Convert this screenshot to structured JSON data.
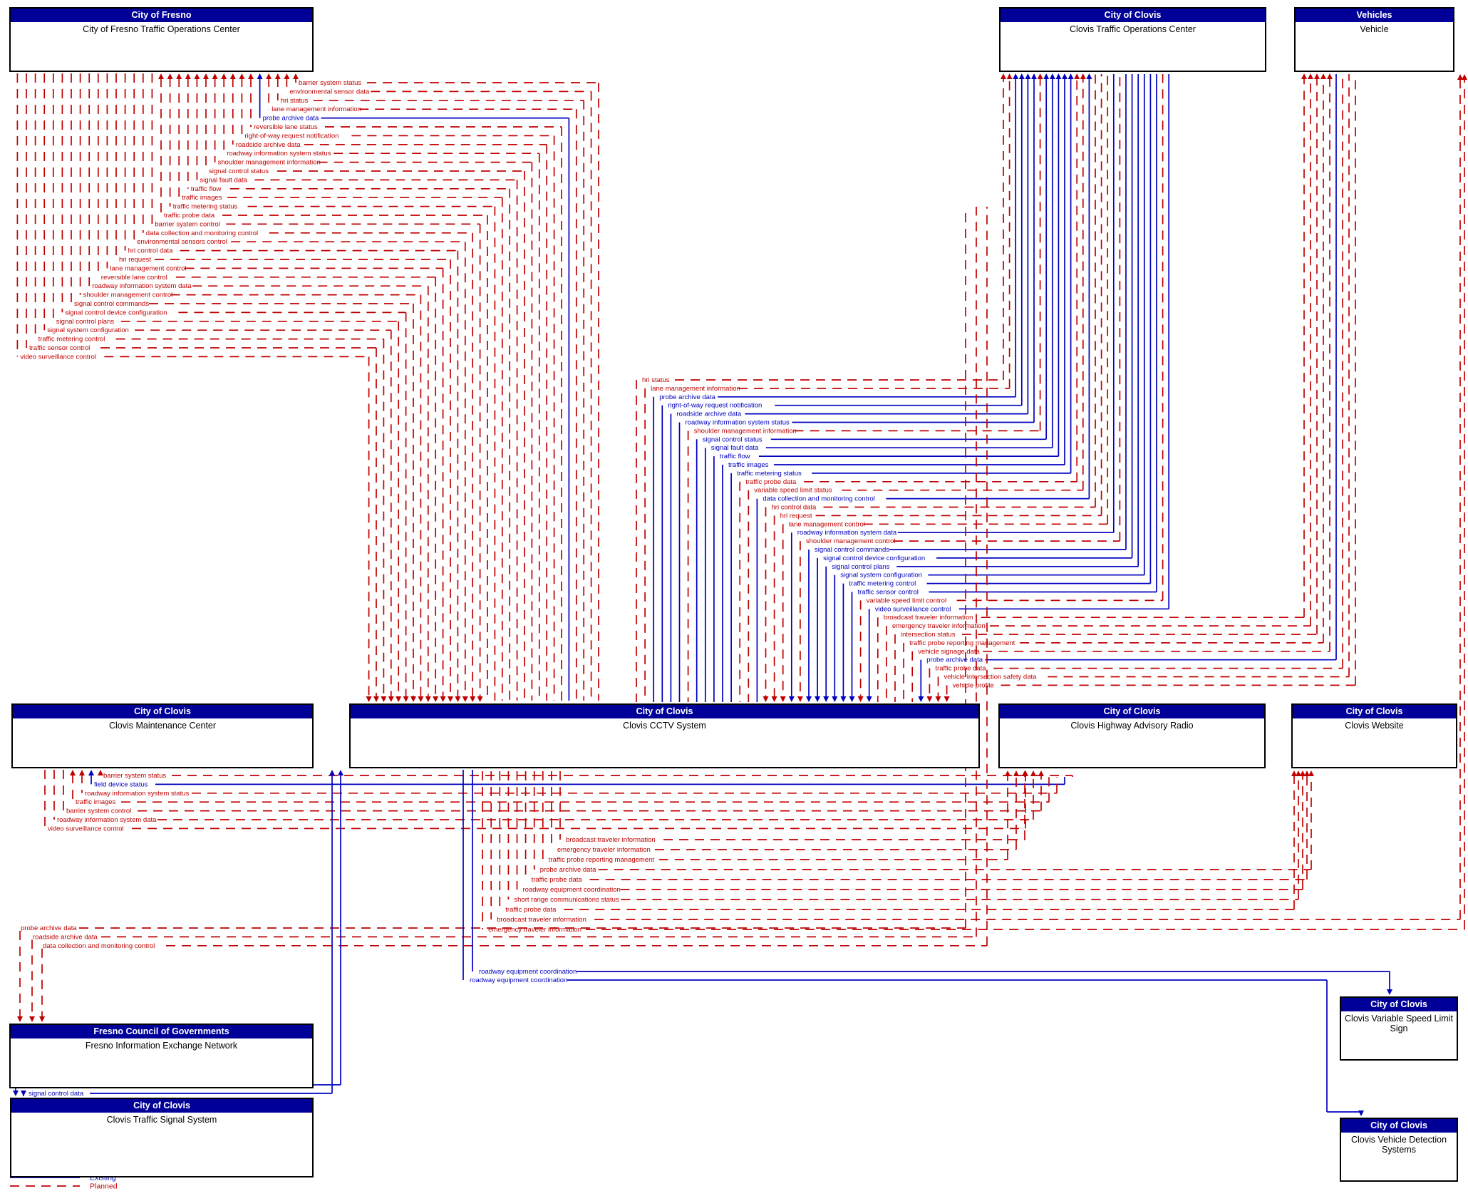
{
  "colors": {
    "existing": "#0000bf",
    "planned": "#c00000",
    "header_bg": "#000099",
    "box_border": "#000000",
    "box_bg": "#ffffff"
  },
  "legend": {
    "items": [
      {
        "label": "Existing",
        "status": "existing"
      },
      {
        "label": "Planned",
        "status": "planned"
      }
    ]
  },
  "boxes": [
    {
      "id": "fresno-toc",
      "org": "City of Fresno",
      "name": "City of Fresno Traffic Operations Center"
    },
    {
      "id": "clovis-toc",
      "org": "City of Clovis",
      "name": "Clovis Traffic Operations Center"
    },
    {
      "id": "vehicle",
      "org": "Vehicles",
      "name": "Vehicle"
    },
    {
      "id": "maintenance",
      "org": "City of Clovis",
      "name": "Clovis Maintenance Center"
    },
    {
      "id": "cctv",
      "org": "City of Clovis",
      "name": "Clovis CCTV System"
    },
    {
      "id": "har",
      "org": "City of Clovis",
      "name": "Clovis Highway Advisory Radio"
    },
    {
      "id": "website",
      "org": "City of Clovis",
      "name": "Clovis Website"
    },
    {
      "id": "fien",
      "org": "Fresno Council of Governments",
      "name": "Fresno Information Exchange Network"
    },
    {
      "id": "tss",
      "org": "City of Clovis",
      "name": "Clovis Traffic Signal System"
    },
    {
      "id": "vsls",
      "org": "City of Clovis",
      "name": "Clovis Variable Speed Limit Sign"
    },
    {
      "id": "vds",
      "org": "City of Clovis",
      "name": "Clovis Vehicle Detection Systems"
    }
  ],
  "flow_groups": [
    {
      "id": "fresno-toc-cctv",
      "labels": [
        {
          "text": "barrier system status",
          "status": "planned"
        },
        {
          "text": "environmental sensor data",
          "status": "planned"
        },
        {
          "text": "hri status",
          "status": "planned"
        },
        {
          "text": "lane management information",
          "status": "planned"
        },
        {
          "text": "probe archive data",
          "status": "existing"
        },
        {
          "text": "reversible lane status",
          "status": "planned"
        },
        {
          "text": "right-of-way request notification",
          "status": "planned"
        },
        {
          "text": "roadside archive data",
          "status": "planned"
        },
        {
          "text": "roadway information system status",
          "status": "planned"
        },
        {
          "text": "shoulder management information",
          "status": "planned"
        },
        {
          "text": "signal control status",
          "status": "planned"
        },
        {
          "text": "signal fault data",
          "status": "planned"
        },
        {
          "text": "traffic flow",
          "status": "planned"
        },
        {
          "text": "traffic images",
          "status": "planned"
        },
        {
          "text": "traffic metering status",
          "status": "planned"
        },
        {
          "text": "traffic probe data",
          "status": "planned"
        },
        {
          "text": "barrier system control",
          "status": "planned"
        },
        {
          "text": "data collection and monitoring control",
          "status": "planned"
        },
        {
          "text": "environmental sensors control",
          "status": "planned"
        },
        {
          "text": "hri control data",
          "status": "planned"
        },
        {
          "text": "hri request",
          "status": "planned"
        },
        {
          "text": "lane management control",
          "status": "planned"
        },
        {
          "text": "reversible lane control",
          "status": "planned"
        },
        {
          "text": "roadway information system data",
          "status": "planned"
        },
        {
          "text": "shoulder management control",
          "status": "planned"
        },
        {
          "text": "signal control commands",
          "status": "planned"
        },
        {
          "text": "signal control device configuration",
          "status": "planned"
        },
        {
          "text": "signal control plans",
          "status": "planned"
        },
        {
          "text": "signal system configuration",
          "status": "planned"
        },
        {
          "text": "traffic metering control",
          "status": "planned"
        },
        {
          "text": "traffic sensor control",
          "status": "planned"
        },
        {
          "text": "video surveillance control",
          "status": "planned"
        }
      ]
    },
    {
      "id": "clovis-toc-cctv",
      "labels": [
        {
          "text": "hri status",
          "status": "planned"
        },
        {
          "text": "lane management information",
          "status": "planned"
        },
        {
          "text": "probe archive data",
          "status": "existing"
        },
        {
          "text": "right-of-way request notification",
          "status": "existing"
        },
        {
          "text": "roadside archive data",
          "status": "existing"
        },
        {
          "text": "roadway information system status",
          "status": "existing"
        },
        {
          "text": "shoulder management information",
          "status": "planned"
        },
        {
          "text": "signal control status",
          "status": "existing"
        },
        {
          "text": "signal fault data",
          "status": "existing"
        },
        {
          "text": "traffic flow",
          "status": "existing"
        },
        {
          "text": "traffic images",
          "status": "existing"
        },
        {
          "text": "traffic metering status",
          "status": "existing"
        },
        {
          "text": "traffic probe data",
          "status": "planned"
        },
        {
          "text": "variable speed limit status",
          "status": "planned"
        },
        {
          "text": "data collection and monitoring control",
          "status": "existing"
        },
        {
          "text": "hri control data",
          "status": "planned"
        },
        {
          "text": "hri request",
          "status": "planned"
        },
        {
          "text": "lane management control",
          "status": "planned"
        },
        {
          "text": "roadway information system data",
          "status": "existing"
        },
        {
          "text": "shoulder management control",
          "status": "planned"
        },
        {
          "text": "signal control commands",
          "status": "existing"
        },
        {
          "text": "signal control device configuration",
          "status": "existing"
        },
        {
          "text": "signal control plans",
          "status": "existing"
        },
        {
          "text": "signal system configuration",
          "status": "existing"
        },
        {
          "text": "traffic metering control",
          "status": "existing"
        },
        {
          "text": "traffic sensor control",
          "status": "existing"
        },
        {
          "text": "variable speed limit control",
          "status": "planned"
        },
        {
          "text": "video surveillance control",
          "status": "existing"
        },
        {
          "text": "broadcast traveler information",
          "status": "planned"
        },
        {
          "text": "emergency traveler information",
          "status": "planned"
        },
        {
          "text": "intersection status",
          "status": "planned"
        },
        {
          "text": "traffic probe reporting management",
          "status": "planned"
        },
        {
          "text": "vehicle signage data",
          "status": "planned"
        },
        {
          "text": "probe archive data",
          "status": "existing"
        },
        {
          "text": "traffic probe data",
          "status": "planned"
        },
        {
          "text": "vehicle intersection safety data",
          "status": "planned"
        },
        {
          "text": "vehicle profile",
          "status": "planned"
        }
      ]
    },
    {
      "id": "maintenance-cctv",
      "labels": [
        {
          "text": "barrier system status",
          "status": "planned"
        },
        {
          "text": "field device status",
          "status": "existing"
        },
        {
          "text": "roadway information system status",
          "status": "planned"
        },
        {
          "text": "traffic images",
          "status": "planned"
        },
        {
          "text": "barrier system control",
          "status": "planned"
        },
        {
          "text": "roadway information system data",
          "status": "planned"
        },
        {
          "text": "video surveillance control",
          "status": "planned"
        }
      ]
    },
    {
      "id": "cctv-south",
      "labels": [
        {
          "text": "broadcast traveler information",
          "status": "planned"
        },
        {
          "text": "emergency traveler information",
          "status": "planned"
        },
        {
          "text": "traffic probe reporting management",
          "status": "planned"
        },
        {
          "text": "probe archive data",
          "status": "planned"
        },
        {
          "text": "traffic probe data",
          "status": "planned"
        },
        {
          "text": "roadway equipment coordination",
          "status": "planned"
        },
        {
          "text": "short range communications status",
          "status": "planned"
        },
        {
          "text": "traffic probe data",
          "status": "planned"
        },
        {
          "text": "broadcast traveler information",
          "status": "planned"
        },
        {
          "text": "emergency traveler information",
          "status": "planned"
        }
      ]
    },
    {
      "id": "fien-flows",
      "labels": [
        {
          "text": "probe archive data",
          "status": "planned"
        },
        {
          "text": "roadside archive data",
          "status": "planned"
        },
        {
          "text": "data collection and monitoring control",
          "status": "planned"
        }
      ]
    },
    {
      "id": "cctv-field-devices",
      "labels": [
        {
          "text": "roadway equipment coordination",
          "status": "existing"
        },
        {
          "text": "roadway equipment coordination",
          "status": "existing"
        }
      ]
    },
    {
      "id": "tss-flows",
      "labels": [
        {
          "text": "roadway equipment coordination",
          "status": "existing"
        },
        {
          "text": "signal control data",
          "status": "existing"
        }
      ]
    }
  ]
}
